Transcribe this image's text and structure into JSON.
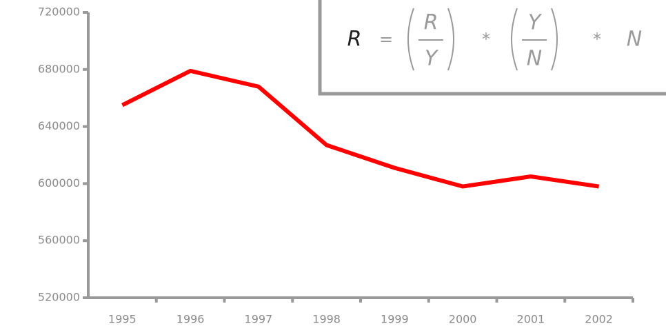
{
  "chart_data": {
    "type": "line",
    "categories": [
      "1995",
      "1996",
      "1997",
      "1998",
      "1999",
      "2000",
      "2001",
      "2002"
    ],
    "values": [
      655000,
      679000,
      668000,
      627000,
      611000,
      598000,
      605000,
      598000
    ],
    "color": "#ff0000",
    "ylim": [
      520000,
      720000
    ],
    "yticks": [
      520000,
      560000,
      600000,
      640000,
      680000,
      720000
    ]
  },
  "formula": {
    "lhs": "R",
    "equals": "=",
    "fraction1": {
      "numerator": "R",
      "denominator": "Y"
    },
    "times1": "*",
    "fraction2": {
      "numerator": "Y",
      "denominator": "N"
    },
    "times2": "*",
    "last": "N"
  }
}
